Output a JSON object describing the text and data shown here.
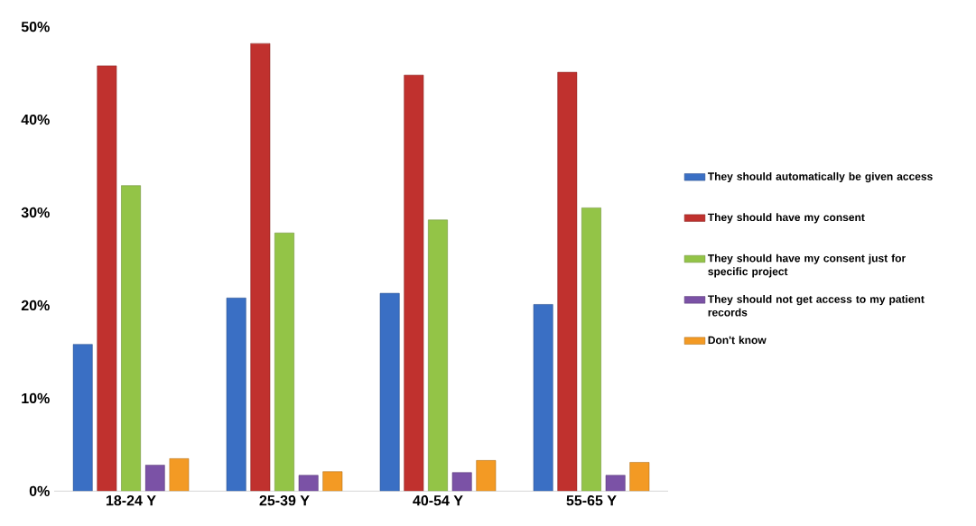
{
  "chart_data": {
    "type": "bar",
    "categories": [
      "18-24 Y",
      "25-39 Y",
      "40-54 Y",
      "55-65 Y"
    ],
    "series": [
      {
        "name": "They should automatically be given access",
        "color": "#3a6fc4",
        "values": [
          15.8,
          20.8,
          21.3,
          20.1
        ]
      },
      {
        "name": "They should have my consent",
        "color": "#c0312e",
        "values": [
          45.8,
          48.2,
          44.8,
          45.1
        ]
      },
      {
        "name": "They should have my consent just for specific project",
        "color": "#93c447",
        "values": [
          32.9,
          27.8,
          29.2,
          30.5
        ]
      },
      {
        "name": "They should not get access to my patient records",
        "color": "#7b52a6",
        "values": [
          2.8,
          1.7,
          2.0,
          1.7
        ]
      },
      {
        "name": "Don't know",
        "color": "#f39a24",
        "values": [
          3.5,
          2.1,
          3.3,
          3.1
        ]
      }
    ],
    "ylim": [
      0,
      50
    ],
    "yticks": [
      {
        "value": 0,
        "label": "0%"
      },
      {
        "value": 10,
        "label": "10%"
      },
      {
        "value": 20,
        "label": "20%"
      },
      {
        "value": 30,
        "label": "30%"
      },
      {
        "value": 40,
        "label": "40%"
      },
      {
        "value": 50,
        "label": "50%"
      }
    ],
    "legend": "right"
  }
}
